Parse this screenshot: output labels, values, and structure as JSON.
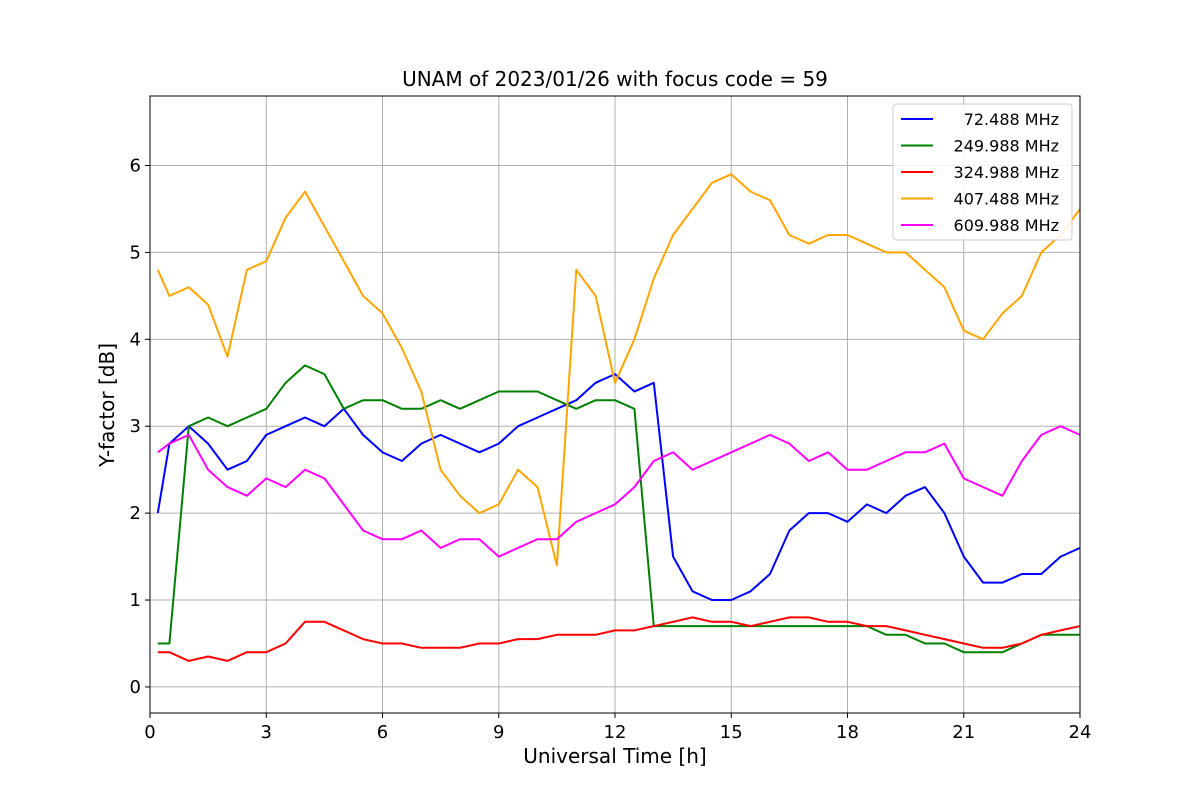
{
  "chart_data": {
    "type": "line",
    "title": "UNAM of 2023/01/26 with focus code = 59",
    "xlabel": "Universal Time [h]",
    "ylabel": "Y-factor [dB]",
    "xlim": [
      0,
      24
    ],
    "ylim": [
      -0.3,
      6.8
    ],
    "xticks": [
      0,
      3,
      6,
      9,
      12,
      15,
      18,
      21,
      24
    ],
    "yticks": [
      0,
      1,
      2,
      3,
      4,
      5,
      6
    ],
    "grid": true,
    "legend_position": "top-right",
    "series": [
      {
        "name": "72.488 MHz",
        "color": "#0000ff",
        "x": [
          0.2,
          0.5,
          1,
          1.5,
          2,
          2.5,
          3,
          3.5,
          4,
          4.5,
          5,
          5.5,
          6,
          6.5,
          7,
          7.5,
          8,
          8.5,
          9,
          9.5,
          10,
          10.5,
          11,
          11.5,
          12,
          12.5,
          13,
          13.5,
          14,
          14.5,
          15,
          15.5,
          16,
          16.5,
          17,
          17.5,
          18,
          18.5,
          19,
          19.5,
          20,
          20.5,
          21,
          21.5,
          22,
          22.5,
          23,
          23.5,
          24
        ],
        "y": [
          2.0,
          2.8,
          3.0,
          2.8,
          2.5,
          2.6,
          2.9,
          3.0,
          3.1,
          3.0,
          3.2,
          2.9,
          2.7,
          2.6,
          2.8,
          2.9,
          2.8,
          2.7,
          2.8,
          3.0,
          3.1,
          3.2,
          3.3,
          3.5,
          3.6,
          3.4,
          3.5,
          1.5,
          1.1,
          1.0,
          1.0,
          1.1,
          1.3,
          1.8,
          2.0,
          2.0,
          1.9,
          2.1,
          2.0,
          2.2,
          2.3,
          2.0,
          1.5,
          1.2,
          1.2,
          1.3,
          1.3,
          1.5,
          1.6
        ]
      },
      {
        "name": "249.988 MHz",
        "color": "#008000",
        "x": [
          0.2,
          0.5,
          1,
          1.5,
          2,
          2.5,
          3,
          3.5,
          4,
          4.5,
          5,
          5.5,
          6,
          6.5,
          7,
          7.5,
          8,
          8.5,
          9,
          9.5,
          10,
          10.5,
          11,
          11.5,
          12,
          12.5,
          13,
          13.5,
          14,
          14.5,
          15,
          15.5,
          16,
          16.5,
          17,
          17.5,
          18,
          18.5,
          19,
          19.5,
          20,
          20.5,
          21,
          21.5,
          22,
          22.5,
          23,
          23.5,
          24
        ],
        "y": [
          0.5,
          0.5,
          3.0,
          3.1,
          3.0,
          3.1,
          3.2,
          3.5,
          3.7,
          3.6,
          3.2,
          3.3,
          3.3,
          3.2,
          3.2,
          3.3,
          3.2,
          3.3,
          3.4,
          3.4,
          3.4,
          3.3,
          3.2,
          3.3,
          3.3,
          3.2,
          0.7,
          0.7,
          0.7,
          0.7,
          0.7,
          0.7,
          0.7,
          0.7,
          0.7,
          0.7,
          0.7,
          0.7,
          0.6,
          0.6,
          0.5,
          0.5,
          0.4,
          0.4,
          0.4,
          0.5,
          0.6,
          0.6,
          0.6
        ]
      },
      {
        "name": "324.988 MHz",
        "color": "#ff0000",
        "x": [
          0.2,
          0.5,
          1,
          1.5,
          2,
          2.5,
          3,
          3.5,
          4,
          4.5,
          5,
          5.5,
          6,
          6.5,
          7,
          7.5,
          8,
          8.5,
          9,
          9.5,
          10,
          10.5,
          11,
          11.5,
          12,
          12.5,
          13,
          13.5,
          14,
          14.5,
          15,
          15.5,
          16,
          16.5,
          17,
          17.5,
          18,
          18.5,
          19,
          19.5,
          20,
          20.5,
          21,
          21.5,
          22,
          22.5,
          23,
          23.5,
          24
        ],
        "y": [
          0.4,
          0.4,
          0.3,
          0.35,
          0.3,
          0.4,
          0.4,
          0.5,
          0.75,
          0.75,
          0.65,
          0.55,
          0.5,
          0.5,
          0.45,
          0.45,
          0.45,
          0.5,
          0.5,
          0.55,
          0.55,
          0.6,
          0.6,
          0.6,
          0.65,
          0.65,
          0.7,
          0.75,
          0.8,
          0.75,
          0.75,
          0.7,
          0.75,
          0.8,
          0.8,
          0.75,
          0.75,
          0.7,
          0.7,
          0.65,
          0.6,
          0.55,
          0.5,
          0.45,
          0.45,
          0.5,
          0.6,
          0.65,
          0.7
        ]
      },
      {
        "name": "407.488 MHz",
        "color": "#ffa500",
        "x": [
          0.2,
          0.5,
          1,
          1.5,
          2,
          2.5,
          3,
          3.5,
          4,
          4.5,
          5,
          5.5,
          6,
          6.5,
          7,
          7.5,
          8,
          8.5,
          9,
          9.5,
          10,
          10.5,
          11,
          11.5,
          12,
          12.5,
          13,
          13.5,
          14,
          14.5,
          15,
          15.5,
          16,
          16.5,
          17,
          17.5,
          18,
          18.5,
          19,
          19.5,
          20,
          20.5,
          21,
          21.5,
          22,
          22.5,
          23,
          23.5,
          24
        ],
        "y": [
          4.8,
          4.5,
          4.6,
          4.4,
          3.8,
          4.8,
          4.9,
          5.4,
          5.7,
          5.3,
          4.9,
          4.5,
          4.3,
          3.9,
          3.4,
          2.5,
          2.2,
          2.0,
          2.1,
          2.5,
          2.3,
          1.4,
          4.8,
          4.5,
          3.5,
          4.0,
          4.7,
          5.2,
          5.5,
          5.8,
          5.9,
          5.7,
          5.6,
          5.2,
          5.1,
          5.2,
          5.2,
          5.1,
          5.0,
          5.0,
          4.8,
          4.6,
          4.1,
          4.0,
          4.3,
          4.5,
          5.0,
          5.2,
          5.5
        ]
      },
      {
        "name": "609.988 MHz",
        "color": "#ff00ff",
        "x": [
          0.2,
          0.5,
          1,
          1.5,
          2,
          2.5,
          3,
          3.5,
          4,
          4.5,
          5,
          5.5,
          6,
          6.5,
          7,
          7.5,
          8,
          8.5,
          9,
          9.5,
          10,
          10.5,
          11,
          11.5,
          12,
          12.5,
          13,
          13.5,
          14,
          14.5,
          15,
          15.5,
          16,
          16.5,
          17,
          17.5,
          18,
          18.5,
          19,
          19.5,
          20,
          20.5,
          21,
          21.5,
          22,
          22.5,
          23,
          23.5,
          24
        ],
        "y": [
          2.7,
          2.8,
          2.9,
          2.5,
          2.3,
          2.2,
          2.4,
          2.3,
          2.5,
          2.4,
          2.1,
          1.8,
          1.7,
          1.7,
          1.8,
          1.6,
          1.7,
          1.7,
          1.5,
          1.6,
          1.7,
          1.7,
          1.9,
          2.0,
          2.1,
          2.3,
          2.6,
          2.7,
          2.5,
          2.6,
          2.7,
          2.8,
          2.9,
          2.8,
          2.6,
          2.7,
          2.5,
          2.5,
          2.6,
          2.7,
          2.7,
          2.8,
          2.4,
          2.3,
          2.2,
          2.6,
          2.9,
          3.0,
          2.9
        ]
      }
    ]
  }
}
